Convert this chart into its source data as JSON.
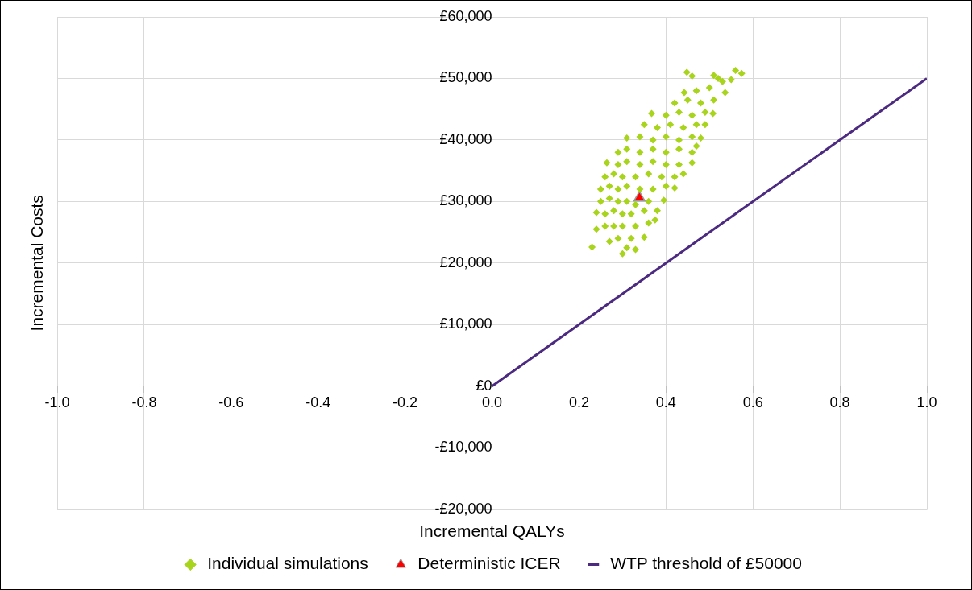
{
  "chart_data": {
    "type": "scatter",
    "xlabel": "Incremental QALYs",
    "ylabel": "Incremental Costs",
    "xlim": [
      -1,
      1
    ],
    "xticks": [
      {
        "value": -1,
        "label": "-1.0"
      },
      {
        "value": -0.8,
        "label": "-0.8"
      },
      {
        "value": -0.6,
        "label": "-0.6"
      },
      {
        "value": -0.4,
        "label": "-0.4"
      },
      {
        "value": -0.2,
        "label": "-0.2"
      },
      {
        "value": 0,
        "label": "0.0"
      },
      {
        "value": 0.2,
        "label": "0.2"
      },
      {
        "value": 0.4,
        "label": "0.4"
      },
      {
        "value": 0.6,
        "label": "0.6"
      },
      {
        "value": 0.8,
        "label": "0.8"
      },
      {
        "value": 1,
        "label": "1.0"
      }
    ],
    "ylim": [
      -20000,
      60000
    ],
    "yticks": [
      {
        "value": -20000,
        "label": "-£20,000"
      },
      {
        "value": -10000,
        "label": "-£10,000"
      },
      {
        "value": 0,
        "label": "£0"
      },
      {
        "value": 10000,
        "label": "£10,000"
      },
      {
        "value": 20000,
        "label": "£20,000"
      },
      {
        "value": 30000,
        "label": "£30,000"
      },
      {
        "value": 40000,
        "label": "£40,000"
      },
      {
        "value": 50000,
        "label": "£50,000"
      },
      {
        "value": 60000,
        "label": "£60,000"
      }
    ],
    "grid": true,
    "legend": "bottom",
    "series": [
      {
        "name": "Individual simulations",
        "marker": "diamond",
        "color": "#a8d41c",
        "x": [
          0.3,
          0.23,
          0.31,
          0.33,
          0.27,
          0.29,
          0.32,
          0.35,
          0.24,
          0.26,
          0.28,
          0.3,
          0.33,
          0.36,
          0.375,
          0.24,
          0.26,
          0.28,
          0.3,
          0.32,
          0.35,
          0.38,
          0.25,
          0.27,
          0.29,
          0.31,
          0.33,
          0.36,
          0.395,
          0.25,
          0.27,
          0.29,
          0.31,
          0.34,
          0.37,
          0.4,
          0.42,
          0.26,
          0.28,
          0.3,
          0.33,
          0.36,
          0.39,
          0.42,
          0.44,
          0.264,
          0.29,
          0.31,
          0.34,
          0.37,
          0.4,
          0.43,
          0.46,
          0.29,
          0.31,
          0.34,
          0.37,
          0.4,
          0.43,
          0.46,
          0.47,
          0.31,
          0.34,
          0.37,
          0.4,
          0.43,
          0.46,
          0.48,
          0.35,
          0.38,
          0.41,
          0.44,
          0.47,
          0.49,
          0.367,
          0.4,
          0.43,
          0.46,
          0.49,
          0.508,
          0.42,
          0.45,
          0.48,
          0.51,
          0.442,
          0.47,
          0.5,
          0.536,
          0.53,
          0.448,
          0.46,
          0.51,
          0.52,
          0.56,
          0.574,
          0.55
        ],
        "values": [
          21500,
          22600,
          22500,
          22200,
          23500,
          24000,
          24000,
          24200,
          25500,
          26000,
          26000,
          26000,
          26000,
          26500,
          27000,
          28200,
          28000,
          28500,
          28000,
          28000,
          28500,
          28500,
          30000,
          30500,
          30000,
          30000,
          29500,
          30000,
          30200,
          32000,
          32500,
          32000,
          32500,
          32000,
          32000,
          32500,
          32200,
          34000,
          34500,
          34000,
          34000,
          34500,
          34000,
          34000,
          34500,
          36300,
          36000,
          36500,
          36000,
          36500,
          36000,
          36000,
          36300,
          38000,
          38500,
          38000,
          38500,
          38000,
          38500,
          38000,
          39000,
          40300,
          40500,
          40000,
          40500,
          40000,
          40500,
          40300,
          42500,
          42000,
          42500,
          42000,
          42500,
          42500,
          44300,
          44000,
          44500,
          44000,
          44500,
          44300,
          46000,
          46500,
          46000,
          46500,
          47700,
          48000,
          48500,
          47700,
          49500,
          51000,
          50400,
          50500,
          50000,
          51300,
          50800,
          49800
        ]
      },
      {
        "name": "Deterministic ICER",
        "marker": "triangle",
        "color": "#ff0000",
        "x": [
          0.339
        ],
        "values": [
          30600
        ]
      },
      {
        "name": "WTP threshold of £50000",
        "type": "line",
        "marker": "none",
        "color": "#4b2a80",
        "x": [
          0,
          1
        ],
        "values": [
          0,
          50000
        ]
      }
    ]
  }
}
